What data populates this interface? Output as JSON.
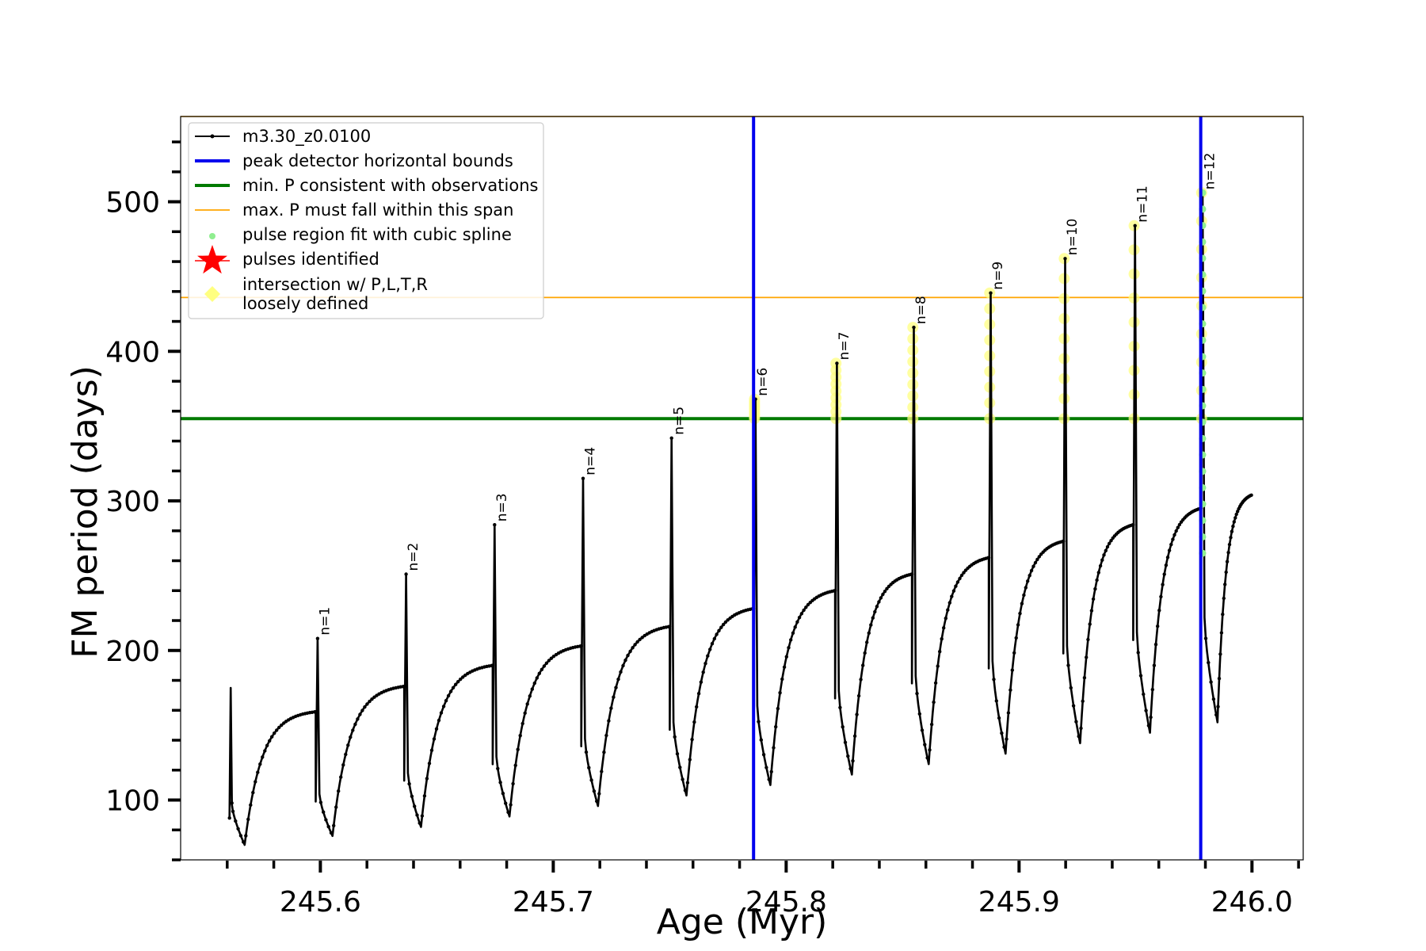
{
  "chart_data": {
    "type": "line",
    "xlabel": "Age (Myr)",
    "ylabel": "FM period (days)",
    "xlim": [
      245.54,
      246.022
    ],
    "ylim": [
      60,
      557
    ],
    "x_major_ticks": [
      245.6,
      245.7,
      245.8,
      245.9,
      246.0
    ],
    "x_tick_labels": [
      "245.6",
      "245.7",
      "245.8",
      "245.9",
      "246.0"
    ],
    "x_minor_step": 0.02,
    "y_major_ticks": [
      100,
      200,
      300,
      400,
      500
    ],
    "y_tick_labels": [
      "100",
      "200",
      "300",
      "400",
      "500"
    ],
    "y_minor_step": 20,
    "grid": false,
    "legend_position": "top-left",
    "start": {
      "x": 245.561,
      "y_low": 88,
      "y_high": 175
    },
    "end": {
      "x": 246.0,
      "y": 304
    },
    "pulses": [
      {
        "label": "n=1",
        "x": 245.598,
        "y_start": 159,
        "y_drop": 99,
        "y_peak": 208,
        "y_min": 76
      },
      {
        "label": "n=2",
        "x": 245.636,
        "y_start": 176,
        "y_drop": 113,
        "y_peak": 251,
        "y_min": 82
      },
      {
        "label": "n=3",
        "x": 245.674,
        "y_start": 190,
        "y_drop": 124,
        "y_peak": 284,
        "y_min": 89
      },
      {
        "label": "n=4",
        "x": 245.712,
        "y_start": 203,
        "y_drop": 136,
        "y_peak": 315,
        "y_min": 96
      },
      {
        "label": "n=5",
        "x": 245.75,
        "y_start": 216,
        "y_drop": 147,
        "y_peak": 342,
        "y_min": 103
      },
      {
        "label": "n=6",
        "x": 245.786,
        "y_start": 228,
        "y_drop": 158,
        "y_peak": 368,
        "y_min": 110
      },
      {
        "label": "n=7",
        "x": 245.821,
        "y_start": 240,
        "y_drop": 168,
        "y_peak": 392,
        "y_min": 117
      },
      {
        "label": "n=8",
        "x": 245.854,
        "y_start": 251,
        "y_drop": 178,
        "y_peak": 416,
        "y_min": 124
      },
      {
        "label": "n=9",
        "x": 245.887,
        "y_start": 262,
        "y_drop": 188,
        "y_peak": 439,
        "y_min": 131
      },
      {
        "label": "n=10",
        "x": 245.919,
        "y_start": 273,
        "y_drop": 198,
        "y_peak": 462,
        "y_min": 138
      },
      {
        "label": "n=11",
        "x": 245.949,
        "y_start": 284,
        "y_drop": 207,
        "y_peak": 484,
        "y_min": 145
      },
      {
        "label": "n=12",
        "x": 245.978,
        "y_start": 295,
        "y_drop": 217,
        "y_peak": 506,
        "y_min": 152
      }
    ],
    "min_period_line": 355,
    "max_period_line": 436,
    "peak_detector_bounds": [
      245.786,
      245.978
    ],
    "colors": {
      "track": "#000000",
      "bounds": "#0000ee",
      "min_period": "#007a00",
      "max_period": "#ffa500",
      "spline": "#90ee90",
      "star": "#ff0000",
      "loose": "#ffff80",
      "axes": "#000000"
    },
    "legend": [
      {
        "label": "m3.30_z0.0100",
        "kind": "line-marker",
        "color": "#000000"
      },
      {
        "label": "peak detector horizontal bounds",
        "kind": "line-thick",
        "color": "#0000ee"
      },
      {
        "label": "min. P consistent with observations",
        "kind": "line-thick",
        "color": "#007a00"
      },
      {
        "label": "max. P must fall within this span",
        "kind": "line-thin",
        "color": "#ffa500"
      },
      {
        "label": "pulse region fit with cubic spline",
        "kind": "dot",
        "color": "#90ee90"
      },
      {
        "label": "pulses identified",
        "kind": "star",
        "color": "#ff0000"
      },
      {
        "label": "intersection w/ P,L,T,R",
        "label_line2": "loosely defined",
        "kind": "diamond",
        "color": "#ffff80"
      }
    ]
  }
}
